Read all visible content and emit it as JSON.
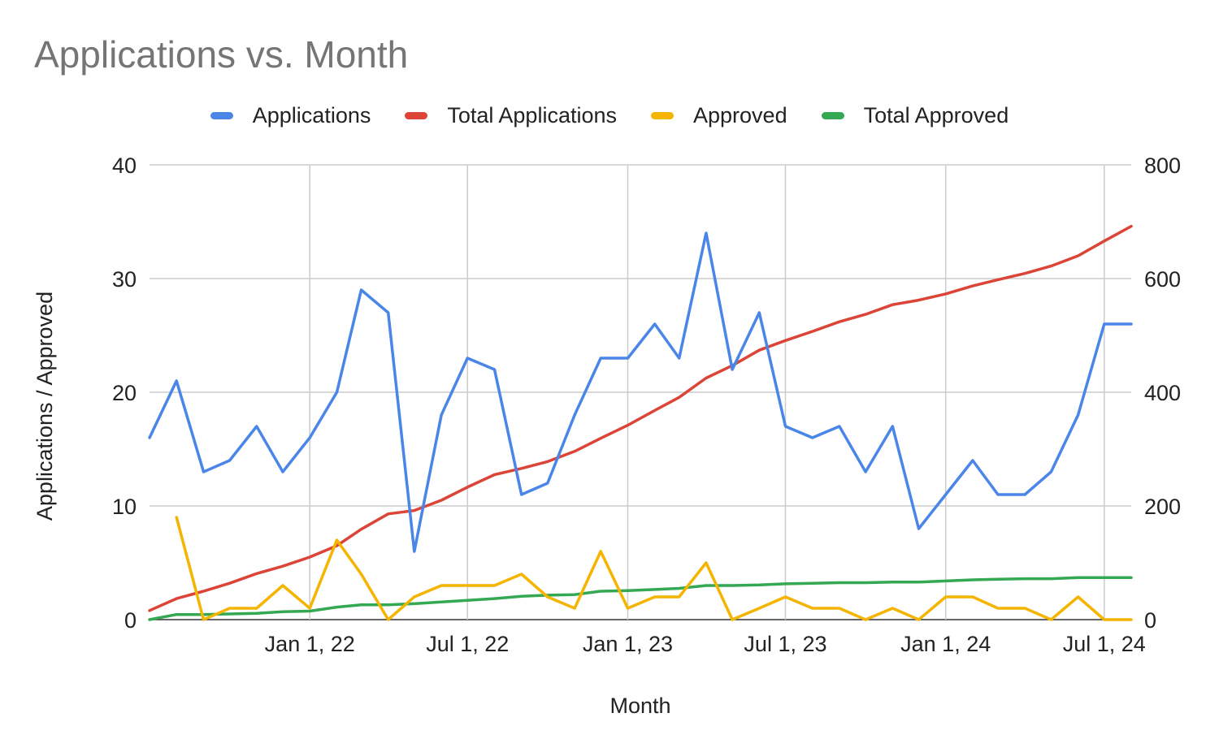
{
  "chart_data": {
    "type": "line",
    "title": "Applications vs. Month",
    "xlabel": "Month",
    "ylabel": "Applications / Approved",
    "y2label": "",
    "legend_position": "top",
    "grid": true,
    "x": [
      "2021-07-01",
      "2021-08-01",
      "2021-09-01",
      "2021-10-01",
      "2021-11-01",
      "2021-12-01",
      "2022-01-01",
      "2022-02-01",
      "2022-03-01",
      "2022-04-01",
      "2022-05-01",
      "2022-06-01",
      "2022-07-01",
      "2022-08-01",
      "2022-09-01",
      "2022-10-01",
      "2022-11-01",
      "2022-12-01",
      "2023-01-01",
      "2023-02-01",
      "2023-03-01",
      "2023-04-01",
      "2023-05-01",
      "2023-06-01",
      "2023-07-01",
      "2023-08-01",
      "2023-09-01",
      "2023-10-01",
      "2023-11-01",
      "2023-12-01",
      "2024-01-01",
      "2024-02-01",
      "2024-03-01",
      "2024-04-01",
      "2024-05-01",
      "2024-06-01",
      "2024-07-01",
      "2024-08-01"
    ],
    "x_ticks": [
      "Jan 1, 22",
      "Jul 1, 22",
      "Jan 1, 23",
      "Jul 1, 23",
      "Jan 1, 24",
      "Jul 1, 24"
    ],
    "x_tick_dates": [
      "2022-01-01",
      "2022-07-01",
      "2023-01-01",
      "2023-07-01",
      "2024-01-01",
      "2024-07-01"
    ],
    "ylim": [
      0,
      40
    ],
    "y_ticks": [
      "0",
      "10",
      "20",
      "30",
      "40"
    ],
    "y2lim": [
      0,
      800
    ],
    "y2_ticks": [
      "0",
      "200",
      "400",
      "600",
      "800"
    ],
    "series": [
      {
        "name": "Applications",
        "axis": "left",
        "color": "#4a86e8",
        "values": [
          16,
          21,
          13,
          14,
          17,
          13,
          16,
          20,
          29,
          27,
          6,
          18,
          23,
          22,
          11,
          12,
          18,
          23,
          23,
          26,
          23,
          34,
          22,
          27,
          17,
          16,
          17,
          13,
          17,
          8,
          11,
          14,
          11,
          11,
          13,
          18,
          26,
          26
        ]
      },
      {
        "name": "Total Applications",
        "axis": "right",
        "color": "#db4437",
        "values": [
          16,
          37,
          50,
          64,
          81,
          94,
          110,
          130,
          159,
          186,
          192,
          210,
          233,
          255,
          266,
          278,
          296,
          319,
          342,
          368,
          391,
          425,
          447,
          474,
          491,
          507,
          524,
          537,
          554,
          562,
          573,
          587,
          598,
          609,
          622,
          640,
          666,
          692
        ]
      },
      {
        "name": "Approved",
        "axis": "left",
        "color": "#f4b400",
        "values": [
          null,
          9,
          0,
          1,
          1,
          3,
          1,
          7,
          4,
          0,
          2,
          3,
          3,
          3,
          4,
          2,
          1,
          6,
          1,
          2,
          2,
          5,
          0,
          1,
          2,
          1,
          1,
          0,
          1,
          0,
          2,
          2,
          1,
          1,
          0,
          2,
          0,
          0
        ]
      },
      {
        "name": "Total Approved",
        "axis": "right",
        "color": "#34a853",
        "values": [
          0,
          9,
          9,
          10,
          11,
          14,
          15,
          22,
          26,
          26,
          28,
          31,
          34,
          37,
          41,
          43,
          44,
          50,
          51,
          53,
          55,
          60,
          60,
          61,
          63,
          64,
          65,
          65,
          66,
          66,
          68,
          70,
          71,
          72,
          72,
          74,
          74,
          74
        ]
      }
    ]
  }
}
